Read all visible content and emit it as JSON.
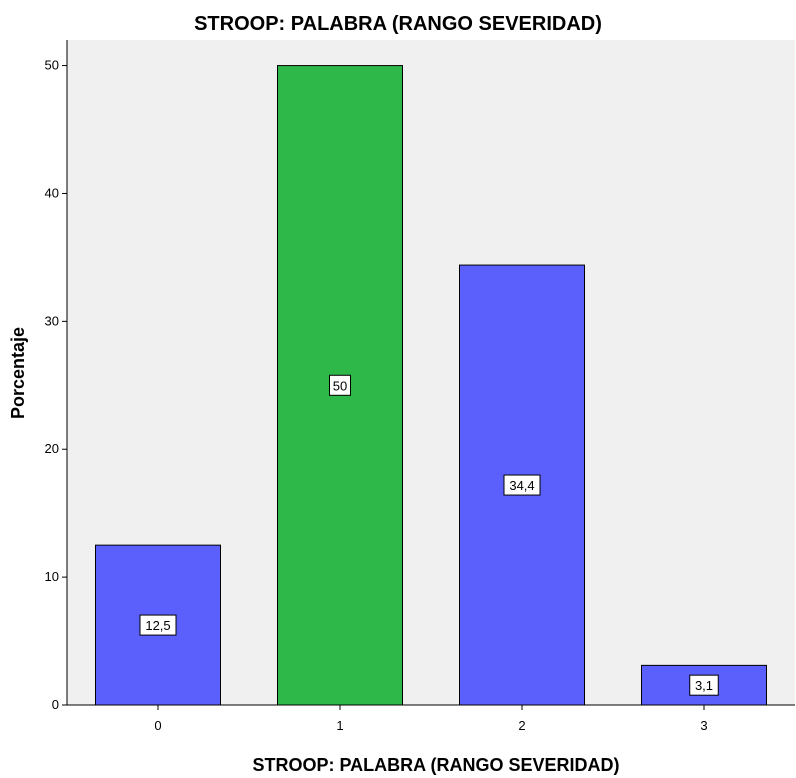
{
  "chart_data": {
    "type": "bar",
    "title": "STROOP: PALABRA (RANGO SEVERIDAD)",
    "xlabel": "STROOP: PALABRA (RANGO SEVERIDAD)",
    "ylabel": "Porcentaje",
    "categories": [
      "0",
      "1",
      "2",
      "3"
    ],
    "values": [
      12.5,
      50,
      34.4,
      3.1
    ],
    "value_labels": [
      "12,5",
      "50",
      "34,4",
      "3,1"
    ],
    "bar_colors": [
      "#5b5ffc",
      "#2fb84a",
      "#5b5ffc",
      "#5b5ffc"
    ],
    "ylim": [
      0,
      52
    ],
    "yticks": [
      0,
      10,
      20,
      30,
      40,
      50
    ],
    "ytick_labels": [
      "0",
      "10",
      "20",
      "30",
      "40",
      "50"
    ],
    "plot_background": "#f0f0f0",
    "grid": false
  }
}
